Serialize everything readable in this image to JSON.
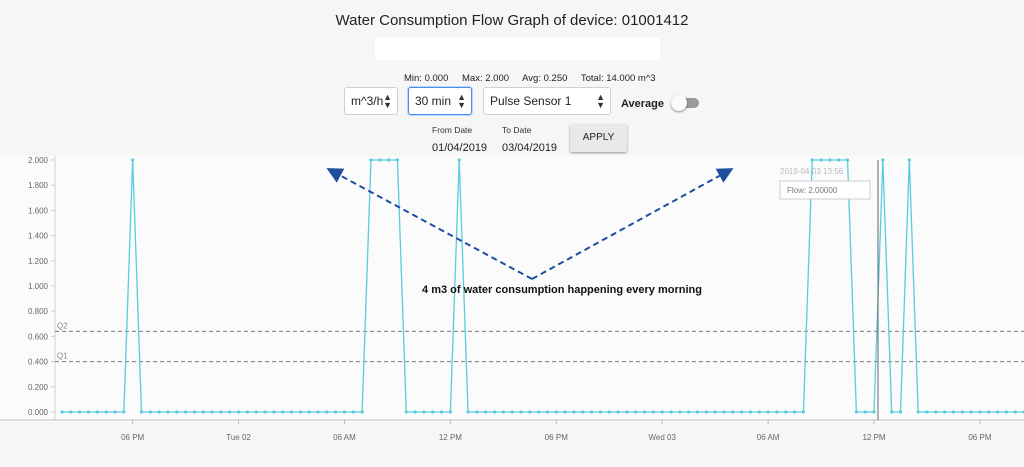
{
  "title": "Water Consumption Flow Graph of device: 01001412",
  "stats": {
    "min": "Min: 0.000",
    "max": "Max: 2.000",
    "avg": "Avg: 0.250",
    "total": "Total: 14.000 m^3"
  },
  "controls": {
    "unit": "m^3/h",
    "interval": "30 min",
    "sensor": "Pulse Sensor 1",
    "average_label": "Average",
    "average_on": false,
    "from_label": "From Date",
    "from_value": "01/04/2019",
    "to_label": "To Date",
    "to_value": "03/04/2019",
    "apply_label": "APPLY"
  },
  "chart_data": {
    "type": "line",
    "series_color": "#5bcbe0",
    "y_ticks": [
      "0.000",
      "0.200",
      "0.400",
      "0.600",
      "0.800",
      "1.000",
      "1.200",
      "1.400",
      "1.600",
      "1.800",
      "2.000"
    ],
    "ylim": [
      0,
      2
    ],
    "x_ticks": [
      {
        "label": "06 PM",
        "pos": 8
      },
      {
        "label": "Tue 02",
        "pos": 20
      },
      {
        "label": "06 AM",
        "pos": 32
      },
      {
        "label": "12 PM",
        "pos": 44
      },
      {
        "label": "06 PM",
        "pos": 56
      },
      {
        "label": "Wed 03",
        "pos": 68
      },
      {
        "label": "06 AM",
        "pos": 80
      },
      {
        "label": "12 PM",
        "pos": 92
      },
      {
        "label": "06 PM",
        "pos": 104
      }
    ],
    "xlim": [
      -0.8,
      108.2
    ],
    "values": [
      0,
      0,
      0,
      0,
      0,
      0,
      0,
      0,
      2,
      0,
      0,
      0,
      0,
      0,
      0,
      0,
      0,
      0,
      0,
      0,
      0,
      0,
      0,
      0,
      0,
      0,
      0,
      0,
      0,
      0,
      0,
      0,
      0,
      0,
      0,
      2,
      2,
      2,
      2,
      0,
      0,
      0,
      0,
      0,
      0,
      2,
      0,
      0,
      0,
      0,
      0,
      0,
      0,
      0,
      0,
      0,
      0,
      0,
      0,
      0,
      0,
      0,
      0,
      0,
      0,
      0,
      0,
      0,
      0,
      0,
      0,
      0,
      0,
      0,
      0,
      0,
      0,
      0,
      0,
      0,
      0,
      0,
      0,
      0,
      0,
      2,
      2,
      2,
      2,
      2,
      0,
      0,
      0,
      2,
      0,
      0,
      2,
      0,
      0,
      0,
      0,
      0,
      0,
      0,
      0,
      0,
      0,
      0,
      0,
      0
    ],
    "thresholds": [
      {
        "label": "Q2",
        "value": 0.64
      },
      {
        "label": "Q1",
        "value": 0.4
      }
    ],
    "annotation": "4 m3 of water consumption happening every morning",
    "tooltip": {
      "date": "2019-04-03 13:56",
      "text": "Flow: 2.00000"
    }
  }
}
